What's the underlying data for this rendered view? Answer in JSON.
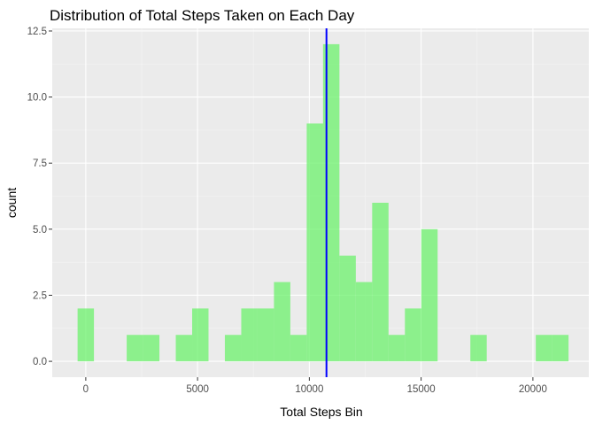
{
  "chart_data": {
    "type": "bar",
    "title": "Distribution of Total Steps Taken on Each Day",
    "xlabel": "Total Steps Bin",
    "ylabel": "count",
    "xlim": [
      -1500,
      22500
    ],
    "ylim": [
      -0.6,
      12.6
    ],
    "x_ticks": [
      0,
      5000,
      10000,
      15000,
      20000
    ],
    "x_tick_labels": [
      "0",
      "5000",
      "10000",
      "15000",
      "20000"
    ],
    "y_ticks": [
      0,
      2.5,
      5,
      7.5,
      10,
      12.5
    ],
    "y_tick_labels": [
      "0.0",
      "2.5",
      "5.0",
      "7.5",
      "10.0",
      "12.5"
    ],
    "bin_width": 732,
    "bins": [
      {
        "x": 0,
        "count": 2
      },
      {
        "x": 732,
        "count": 0
      },
      {
        "x": 1464,
        "count": 0
      },
      {
        "x": 2196,
        "count": 1
      },
      {
        "x": 2928,
        "count": 1
      },
      {
        "x": 3660,
        "count": 0
      },
      {
        "x": 4392,
        "count": 1
      },
      {
        "x": 5124,
        "count": 2
      },
      {
        "x": 5856,
        "count": 0
      },
      {
        "x": 6588,
        "count": 1
      },
      {
        "x": 7320,
        "count": 2
      },
      {
        "x": 8052,
        "count": 2
      },
      {
        "x": 8784,
        "count": 3
      },
      {
        "x": 9516,
        "count": 1
      },
      {
        "x": 10248,
        "count": 9
      },
      {
        "x": 10980,
        "count": 12
      },
      {
        "x": 11712,
        "count": 4
      },
      {
        "x": 12444,
        "count": 3
      },
      {
        "x": 13176,
        "count": 6
      },
      {
        "x": 13908,
        "count": 1
      },
      {
        "x": 14640,
        "count": 2
      },
      {
        "x": 15372,
        "count": 5
      },
      {
        "x": 16104,
        "count": 0
      },
      {
        "x": 16836,
        "count": 0
      },
      {
        "x": 17568,
        "count": 1
      },
      {
        "x": 18300,
        "count": 0
      },
      {
        "x": 19032,
        "count": 0
      },
      {
        "x": 19764,
        "count": 0
      },
      {
        "x": 20496,
        "count": 1
      },
      {
        "x": 21228,
        "count": 1
      }
    ],
    "vline_x": 10766,
    "grid": true,
    "colors": {
      "bar_fill": "#6cf26c",
      "bar_opacity": 0.75,
      "vline": "#0000ff",
      "panel_bg": "#ebebeb",
      "grid_major": "#ffffff",
      "grid_minor": "#f4f4f4"
    }
  }
}
